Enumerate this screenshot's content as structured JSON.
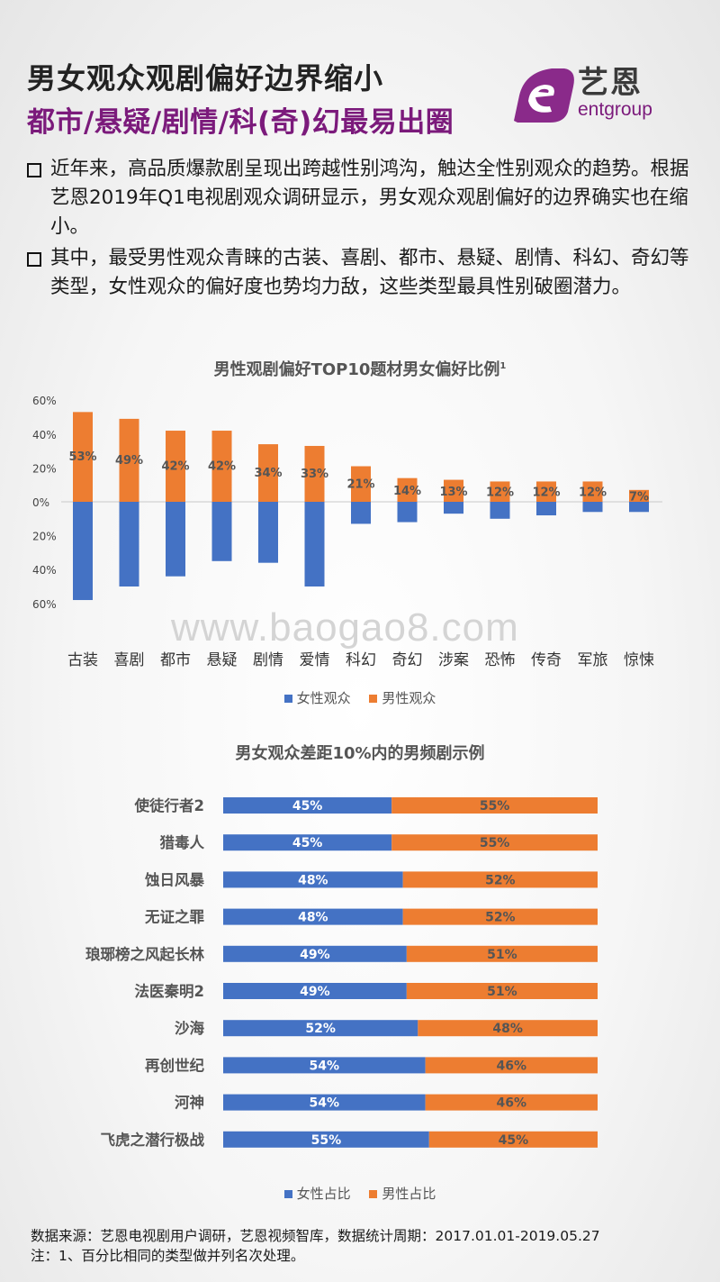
{
  "header": {
    "title_line1": "男女观众观剧偏好边界缩小",
    "title_line2": "都市/悬疑/剧情/科(奇)幻最易出圈",
    "logo_cn": "艺恩",
    "logo_en": "entgroup"
  },
  "bullets": [
    "近年来，高品质爆款剧呈现出跨越性别鸿沟，触达全性别观众的趋势。根据艺恩2019年Q1电视剧观众调研显示，男女观众观剧偏好的边界确实也在缩小。",
    "其中，最受男性观众青睐的古装、喜剧、都市、悬疑、剧情、科幻、奇幻等类型，女性观众的偏好度也势均力敌，这些类型最具性别破圈潜力。"
  ],
  "watermark": "www.baogao8.com",
  "colors": {
    "female": "#4472c4",
    "male": "#ed7d31",
    "title_purple": "#7b1a7b"
  },
  "chart_data": [
    {
      "type": "bar",
      "title": "男性观剧偏好TOP10题材男女偏好比例",
      "title_sup": "1",
      "categories": [
        "古装",
        "喜剧",
        "都市",
        "悬疑",
        "剧情",
        "爱情",
        "科幻",
        "奇幻",
        "涉案",
        "恐怖",
        "传奇",
        "军旅",
        "惊悚"
      ],
      "series": [
        {
          "name": "女性观众",
          "values": [
            58,
            50,
            44,
            35,
            36,
            50,
            13,
            12,
            7,
            10,
            8,
            6,
            6
          ]
        },
        {
          "name": "男性观众",
          "values": [
            53,
            49,
            42,
            42,
            34,
            33,
            21,
            14,
            13,
            12,
            12,
            12,
            7
          ]
        }
      ],
      "data_labels": [
        "53%",
        "49%",
        "42%",
        "42%",
        "34%",
        "33%",
        "21%",
        "14%",
        "13%",
        "12%",
        "12%",
        "12%",
        "7%"
      ],
      "yticks": [
        "60%",
        "40%",
        "20%",
        "0%",
        "20%",
        "40%",
        "60%"
      ],
      "ylim": [
        -60,
        60
      ]
    },
    {
      "type": "bar",
      "orientation": "horizontal-stacked-100",
      "title": "男女观众差距10%内的男频剧示例",
      "categories": [
        "使徒行者2",
        "猎毒人",
        "蚀日风暴",
        "无证之罪",
        "琅琊榜之风起长林",
        "法医秦明2",
        "沙海",
        "再创世纪",
        "河神",
        "飞虎之潜行极战"
      ],
      "series": [
        {
          "name": "女性占比",
          "values": [
            45,
            45,
            48,
            48,
            49,
            49,
            52,
            54,
            54,
            55
          ]
        },
        {
          "name": "男性占比",
          "values": [
            55,
            55,
            52,
            52,
            51,
            51,
            48,
            46,
            46,
            45
          ]
        }
      ]
    }
  ],
  "footer": {
    "line1": "数据来源：艺恩电视剧用户调研，艺恩视频智库，数据统计周期：2017.01.01-2019.05.27",
    "line2": "注：1、百分比相同的类型做并列名次处理。"
  }
}
